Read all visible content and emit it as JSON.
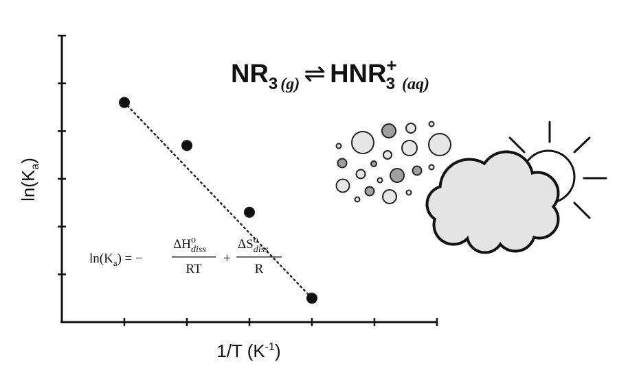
{
  "chart_data": {
    "type": "scatter",
    "x": [
      1,
      2,
      3,
      4
    ],
    "y": [
      4.6,
      3.7,
      2.3,
      0.5
    ],
    "trendline": "dotted linear fit",
    "xlabel": {
      "base": "1/T (K",
      "sup": "-1",
      "tail": ")"
    },
    "ylabel": {
      "base": "ln(K",
      "sub": "a",
      "tail": ")"
    },
    "xlim": [
      0,
      6
    ],
    "ylim": [
      0,
      6
    ],
    "xticks": 6,
    "yticks": 6,
    "grid": false,
    "legend": "none"
  },
  "reaction": {
    "reactant": "NR",
    "reactant_sub": "3",
    "reactant_phase": "(g)",
    "arrow": "⇌",
    "product": "HNR",
    "product_sub": "3",
    "product_sup": "+",
    "product_phase": "(aq)"
  },
  "formula": {
    "lhs": "ln(K",
    "lhs_sub": "a",
    "lhs_tail": ") = −",
    "num1": "ΔH",
    "num1_sup": "o",
    "num1_sub": "diss",
    "den1": "RT",
    "plus": "+",
    "num2": "ΔS",
    "num2_sup": "o",
    "num2_sub": "diss",
    "den2": "R"
  },
  "icons": [
    "aerosol-particles-icon",
    "cloud-icon",
    "sun-icon"
  ],
  "colors": {
    "ink": "#111111",
    "particle_light": "#e6e6e6",
    "particle_dark": "#a0a0a0",
    "cloud": "#e4e4e4"
  }
}
